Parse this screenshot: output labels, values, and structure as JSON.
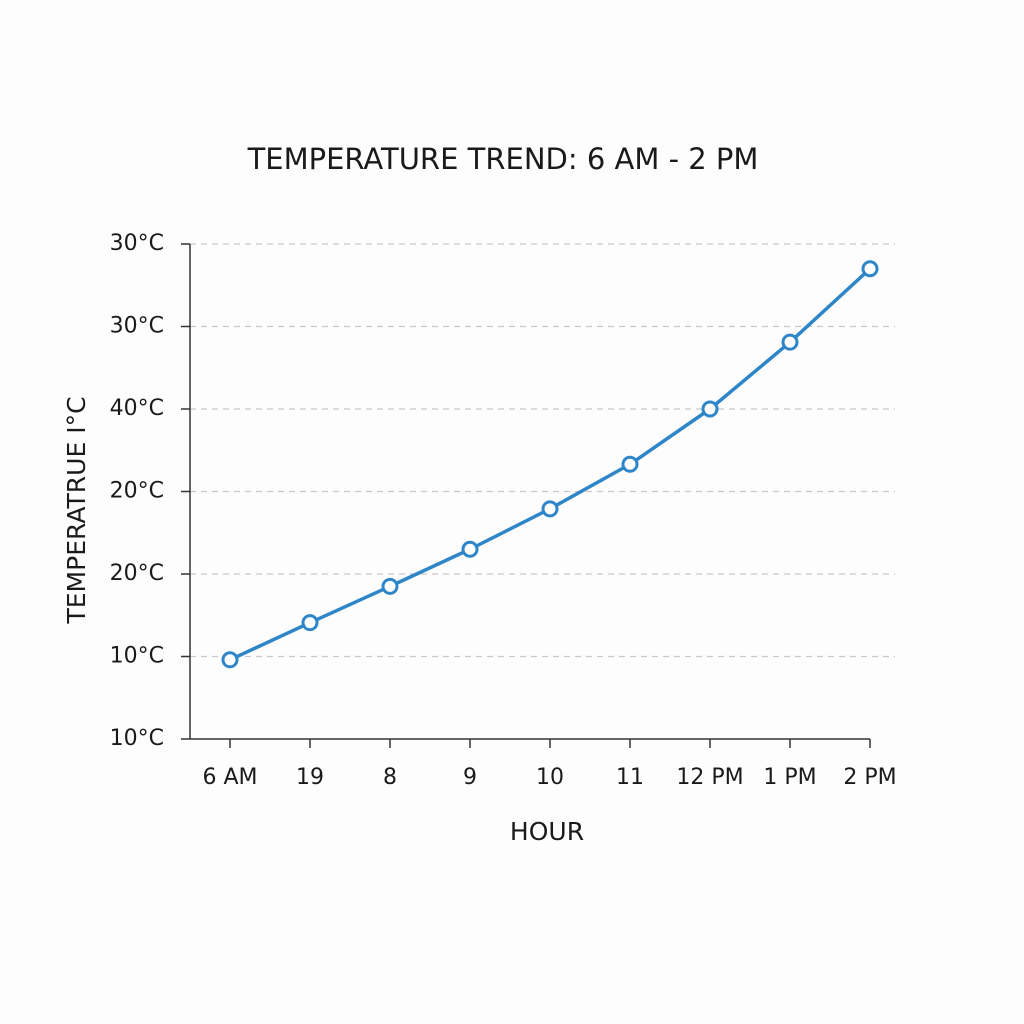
{
  "chart_data": {
    "type": "line",
    "title": "TEMPERATURE TREND: 6 AM - 2 PM",
    "x_label": "HOUR",
    "y_label": "TEMPERATRUE I°C",
    "categories": [
      "6 AM",
      "19",
      "8",
      "9",
      "10",
      "11",
      "12 PM",
      "1 PM",
      "2 PM"
    ],
    "values": [
      0.96,
      1.41,
      1.85,
      2.3,
      2.79,
      3.33,
      4.0,
      4.81,
      5.7
    ],
    "color": "#2e86c8",
    "ylim": [
      0,
      6
    ],
    "yticks": [
      {
        "value": 0,
        "label": "10°C"
      },
      {
        "value": 1,
        "label": "10°C"
      },
      {
        "value": 2,
        "label": "20°C"
      },
      {
        "value": 3,
        "label": "20°C"
      },
      {
        "value": 4,
        "label": "40°C"
      },
      {
        "value": 5,
        "label": "30°C"
      },
      {
        "value": 6,
        "label": "30°C"
      }
    ],
    "grid": true
  }
}
